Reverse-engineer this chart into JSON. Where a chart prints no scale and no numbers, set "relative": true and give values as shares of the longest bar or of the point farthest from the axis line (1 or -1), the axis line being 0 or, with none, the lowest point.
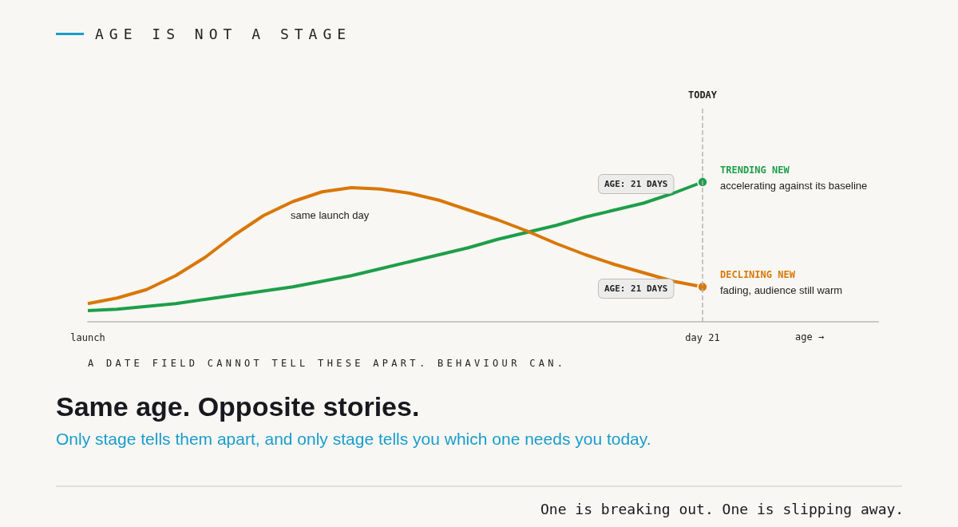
{
  "chart_data": {
    "type": "line",
    "title": "AGE IS NOT A STAGE",
    "relative": true,
    "xlabel": "age →",
    "categories": [
      "launch",
      null,
      null,
      null,
      null,
      null,
      null,
      null,
      null,
      null,
      null,
      null,
      null,
      null,
      null,
      null,
      null,
      null,
      null,
      null,
      null,
      "day 21",
      null,
      null,
      null,
      null,
      null,
      null
    ],
    "series": [
      {
        "name": "TRENDING NEW",
        "color": "#1e9e4a",
        "values": [
          0.08,
          0.09,
          0.11,
          0.13,
          0.16,
          0.19,
          0.22,
          0.25,
          0.29,
          0.33,
          0.38,
          0.43,
          0.48,
          0.53,
          0.59,
          0.64,
          0.69,
          0.75,
          0.8,
          0.85,
          0.92,
          1,
          null,
          null,
          null,
          null,
          null,
          null
        ]
      },
      {
        "name": "DECLINING NEW",
        "color": "#d97706",
        "values": [
          0.13,
          0.17,
          0.23,
          0.33,
          0.46,
          0.62,
          0.76,
          0.86,
          0.93,
          0.96,
          0.95,
          0.92,
          0.87,
          0.8,
          0.73,
          0.65,
          0.56,
          0.48,
          0.41,
          0.35,
          0.29,
          0.25,
          null,
          null,
          null,
          null,
          null,
          null
        ]
      }
    ],
    "ref_lines": [
      {
        "axis": "x",
        "value": "day 21",
        "label": "TODAY",
        "color": "#b5b5b5",
        "line_style": "dashed"
      }
    ],
    "grid": false,
    "legend": false,
    "annotations": [
      "AGE: 21 DAYS",
      {
        "text": "accelerating against its baseline",
        "x": "day 21",
        "y": 1
      },
      "AGE: 21 DAYS",
      {
        "text": "fading, audience still warm",
        "x": "day 21",
        "y": 0.25
      },
      "same launch day",
      "A DATE FIELD CANNOT TELL THESE APART. BEHAVIOUR CAN.",
      "Same age. Opposite stories.",
      "Only stage tells them apart, and only stage tells you which one needs you today.",
      "One is breaking out. One is slipping away."
    ]
  }
}
